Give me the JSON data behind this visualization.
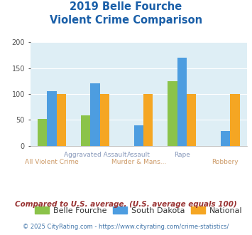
{
  "title_line1": "2019 Belle Fourche",
  "title_line2": "Violent Crime Comparison",
  "belle_fourche": [
    52,
    58,
    0,
    125,
    0
  ],
  "south_dakota": [
    106,
    121,
    39,
    170,
    29
  ],
  "national": [
    100,
    100,
    100,
    100,
    100
  ],
  "belle_color": "#8bc34a",
  "sd_color": "#4d9de0",
  "national_color": "#f5a623",
  "ylim": [
    0,
    200
  ],
  "yticks": [
    0,
    50,
    100,
    150,
    200
  ],
  "bg_color": "#deeef5",
  "title_color": "#1a5fa8",
  "bar_width": 0.22,
  "legend_labels": [
    "Belle Fourche",
    "South Dakota",
    "National"
  ],
  "top_xlabels": [
    "",
    "Aggravated Assault",
    "Assault",
    "Rape",
    ""
  ],
  "bot_xlabels": [
    "All Violent Crime",
    "",
    "Murder & Mans...",
    "",
    "Robbery"
  ],
  "top_xlabel_color": "#8899bb",
  "bot_xlabel_color": "#cc9966",
  "footnote1": "Compared to U.S. average. (U.S. average equals 100)",
  "footnote2": "© 2025 CityRating.com - https://www.cityrating.com/crime-statistics/",
  "footnote1_color": "#993333",
  "footnote2_color": "#4477aa"
}
